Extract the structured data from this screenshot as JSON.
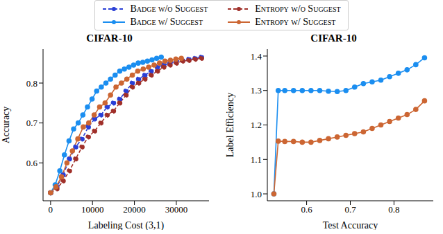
{
  "chart_data": [
    {
      "type": "line",
      "title": "CIFAR-10",
      "x_label": "Labeling Cost (3,1)",
      "y_label": "Accuracy",
      "xlim": [
        -1800,
        37800
      ],
      "ylim": [
        0.505,
        0.885
      ],
      "xticks": [
        0,
        10000,
        20000,
        30000
      ],
      "yticks": [
        0.6,
        0.7,
        0.8
      ],
      "grid": false,
      "legend": "top",
      "series": [
        {
          "name": "Badge w/o Suggest",
          "color": "#2a3fd6",
          "line_style": "dashed",
          "marker": "o",
          "x": [
            0,
            1500,
            3000,
            4500,
            6000,
            7500,
            9000,
            10500,
            12000,
            13500,
            15000,
            16500,
            18000,
            19500,
            21000,
            22500,
            24000,
            25500,
            27000,
            28500,
            30000,
            31500,
            33000,
            34500,
            36000
          ],
          "values": [
            0.525,
            0.54,
            0.57,
            0.61,
            0.64,
            0.66,
            0.69,
            0.71,
            0.72,
            0.74,
            0.75,
            0.76,
            0.78,
            0.8,
            0.81,
            0.82,
            0.83,
            0.84,
            0.845,
            0.85,
            0.855,
            0.857,
            0.86,
            0.862,
            0.865
          ]
        },
        {
          "name": "Badge w/ Suggest",
          "color": "#1b8ef0",
          "line_style": "solid",
          "marker": "o",
          "x": [
            0,
            1100,
            2200,
            3300,
            4400,
            5500,
            6600,
            7700,
            8800,
            9900,
            11000,
            12100,
            13200,
            14300,
            15400,
            16500,
            17600,
            18700,
            19800,
            20900,
            22000,
            23100,
            24200,
            25300,
            26400
          ],
          "values": [
            0.525,
            0.545,
            0.58,
            0.62,
            0.655,
            0.685,
            0.7,
            0.72,
            0.74,
            0.76,
            0.78,
            0.79,
            0.8,
            0.81,
            0.82,
            0.83,
            0.835,
            0.84,
            0.845,
            0.85,
            0.852,
            0.855,
            0.858,
            0.862,
            0.865
          ]
        },
        {
          "name": "Entropy w/o Suggest",
          "color": "#a0302a",
          "line_style": "dashed",
          "marker": "o",
          "x": [
            0,
            1500,
            3000,
            4500,
            6000,
            7500,
            9000,
            10500,
            12000,
            13500,
            15000,
            16500,
            18000,
            19500,
            21000,
            22500,
            24000,
            25500,
            27000,
            28500,
            30000,
            31500,
            33000,
            34500,
            36000
          ],
          "values": [
            0.525,
            0.535,
            0.555,
            0.58,
            0.61,
            0.64,
            0.665,
            0.68,
            0.7,
            0.72,
            0.73,
            0.75,
            0.77,
            0.79,
            0.8,
            0.81,
            0.82,
            0.83,
            0.84,
            0.845,
            0.85,
            0.855,
            0.857,
            0.86,
            0.862
          ]
        },
        {
          "name": "Entropy w/ Suggest",
          "color": "#cc6633",
          "line_style": "solid",
          "marker": "o",
          "x": [
            0,
            1300,
            2600,
            3900,
            5200,
            6500,
            7800,
            9100,
            10400,
            11700,
            13000,
            14300,
            15600,
            16900,
            18200,
            19500,
            20800,
            22100,
            23400,
            24700,
            26000,
            27300,
            28600,
            29900,
            31200
          ],
          "values": [
            0.525,
            0.54,
            0.565,
            0.6,
            0.63,
            0.66,
            0.69,
            0.7,
            0.72,
            0.74,
            0.75,
            0.77,
            0.79,
            0.8,
            0.81,
            0.82,
            0.83,
            0.835,
            0.84,
            0.845,
            0.85,
            0.855,
            0.857,
            0.86,
            0.862
          ]
        }
      ]
    },
    {
      "type": "line",
      "title": "CIFAR-10",
      "x_label": "Test Accuracy",
      "y_label": "Label Efficiency",
      "xlim": [
        0.51,
        0.89
      ],
      "ylim": [
        0.98,
        1.42
      ],
      "xticks": [
        0.6,
        0.7,
        0.8
      ],
      "yticks": [
        {
          "value": 1,
          "label": "1.0"
        },
        1.1,
        1.2,
        1.3,
        1.4
      ],
      "grid": false,
      "x": [
        0.525,
        0.535,
        0.55,
        0.57,
        0.59,
        0.61,
        0.63,
        0.65,
        0.67,
        0.69,
        0.71,
        0.73,
        0.75,
        0.77,
        0.79,
        0.81,
        0.83,
        0.85,
        0.87
      ],
      "series": [
        {
          "color": "#1b8ef0",
          "line_style": "solid",
          "marker": "o",
          "values": [
            1.0,
            1.3,
            1.3,
            1.3,
            1.3,
            1.3,
            1.3,
            1.298,
            1.297,
            1.3,
            1.31,
            1.32,
            1.325,
            1.33,
            1.34,
            1.35,
            1.36,
            1.375,
            1.395
          ]
        },
        {
          "color": "#cc6633",
          "line_style": "solid",
          "marker": "o",
          "values": [
            1.0,
            1.153,
            1.152,
            1.152,
            1.15,
            1.15,
            1.155,
            1.16,
            1.165,
            1.17,
            1.175,
            1.18,
            1.19,
            1.2,
            1.21,
            1.22,
            1.23,
            1.245,
            1.27
          ]
        }
      ]
    }
  ]
}
